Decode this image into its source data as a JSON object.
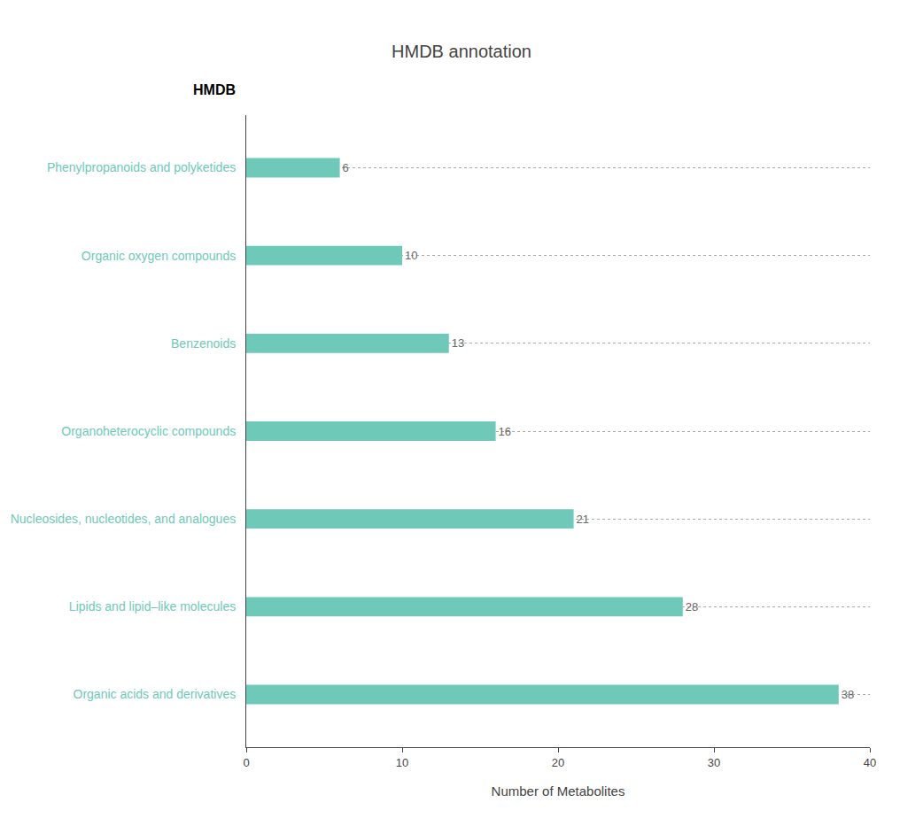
{
  "chart_data": {
    "type": "bar",
    "orientation": "horizontal",
    "title": "HMDB annotation",
    "xlabel": "Number of Metabolites",
    "ylabel": "HMDB",
    "categories": [
      "Organic acids and derivatives",
      "Lipids and lipid–like molecules",
      "Nucleosides, nucleotides, and analogues",
      "Organoheterocyclic compounds",
      "Benzenoids",
      "Organic oxygen compounds",
      "Phenylpropanoids and polyketides"
    ],
    "values": [
      38,
      28,
      21,
      16,
      13,
      10,
      6
    ],
    "color": "#6ec9b8",
    "xlim": [
      0,
      40
    ],
    "xticks": [
      0,
      10,
      20,
      30,
      40
    ],
    "grid": true,
    "data_labels": true
  }
}
